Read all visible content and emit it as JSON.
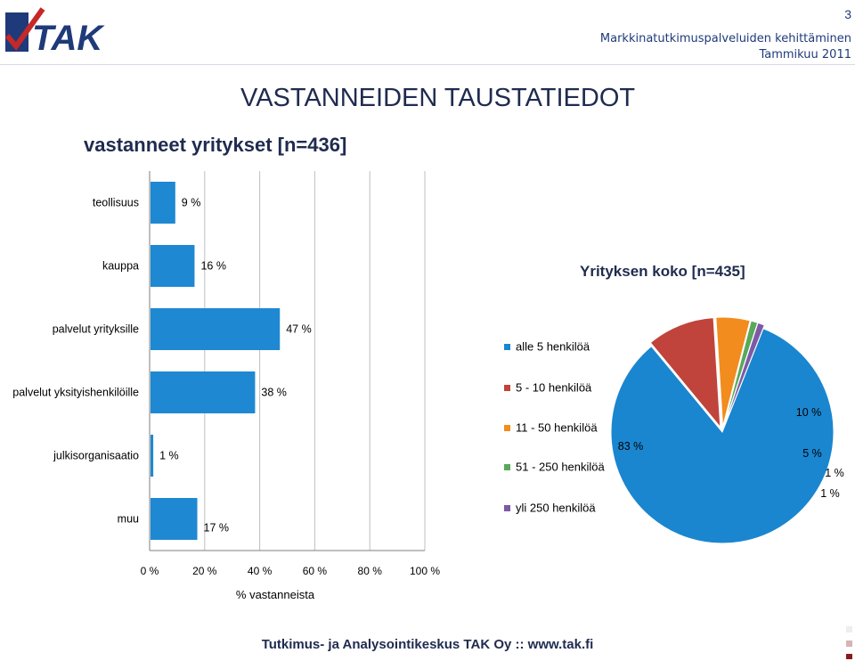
{
  "header": {
    "page_number": "3",
    "line1": "Markkinatutkimuspalveluiden kehittäminen",
    "line2": "Tammikuu 2011",
    "logo_text": "TAK"
  },
  "title": "VASTANNEIDEN TAUSTATIEDOT",
  "footer": "Tutkimus- ja Analysointikeskus TAK Oy :: www.tak.fi",
  "colors": {
    "bar": "#1e88d2",
    "header_text": "#1f3a7a",
    "title_text": "#1f2b4f"
  },
  "chart_data": [
    {
      "type": "bar",
      "orientation": "horizontal",
      "title": "vastanneet yritykset [n=436]",
      "categories": [
        "teollisuus",
        "kauppa",
        "palvelut yrityksille",
        "palvelut yksityishenkilöille",
        "julkisorganisaatio",
        "muu"
      ],
      "values": [
        9,
        16,
        47,
        38,
        1,
        17
      ],
      "value_labels": [
        "9 %",
        "16 %",
        "47 %",
        "38 %",
        "1 %",
        "17 %"
      ],
      "xlabel": "% vastanneista",
      "xlim": [
        0,
        100
      ],
      "xticks": [
        "0 %",
        "20 %",
        "40 %",
        "60 %",
        "80 %",
        "100 %"
      ],
      "grid": true
    },
    {
      "type": "pie",
      "title": "Yrityksen koko [n=435]",
      "legend_position": "left",
      "slices": [
        {
          "label": "alle 5 henkilöä",
          "value": 83,
          "value_label": "83 %",
          "color": "#1a86cf"
        },
        {
          "label": "5 - 10 henkilöä",
          "value": 10,
          "value_label": "10 %",
          "color": "#c0443c"
        },
        {
          "label": "11 - 50 henkilöä",
          "value": 5,
          "value_label": "5 %",
          "color": "#f28c1e"
        },
        {
          "label": "51 - 250 henkilöä",
          "value": 1,
          "value_label": "1 %",
          "color": "#5aa85a"
        },
        {
          "label": "yli 250 henkilöä",
          "value": 1,
          "value_label": "1 %",
          "color": "#7c5aa6"
        }
      ]
    }
  ]
}
